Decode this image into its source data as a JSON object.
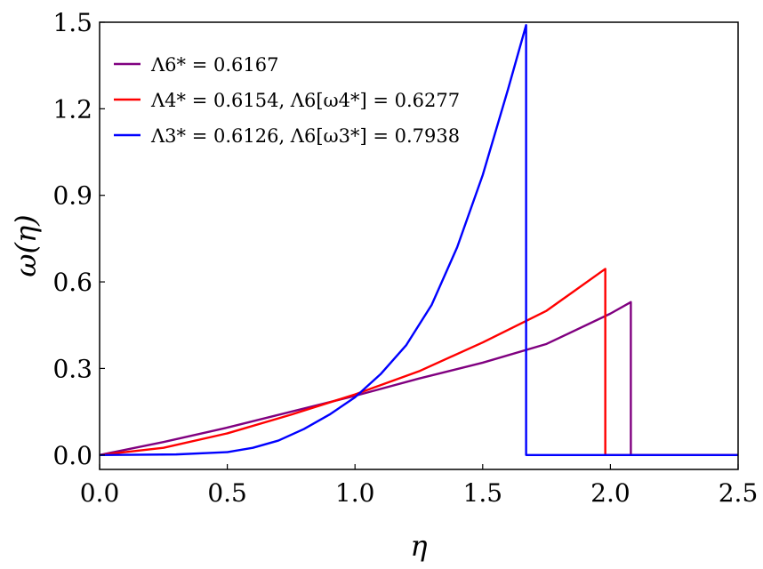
{
  "chart_data": {
    "type": "line",
    "title": "",
    "xlabel": "η",
    "ylabel": "ω(η)",
    "xlim": [
      0.0,
      2.5
    ],
    "ylim": [
      -0.05,
      1.5
    ],
    "xticks": [
      "0.0",
      "0.5",
      "1.0",
      "1.5",
      "2.0",
      "2.5"
    ],
    "yticks": [
      "0.0",
      "0.3",
      "0.6",
      "0.9",
      "1.2",
      "1.5"
    ],
    "grid": false,
    "legend_position": "top-left",
    "series": [
      {
        "name": "Λ6* = 0.6167",
        "color": "#800080",
        "x": [
          0.0,
          0.25,
          0.5,
          0.75,
          1.0,
          1.25,
          1.5,
          1.75,
          2.0,
          2.08,
          2.08,
          2.5
        ],
        "y": [
          0.0,
          0.045,
          0.095,
          0.15,
          0.205,
          0.265,
          0.32,
          0.385,
          0.49,
          0.53,
          0.0,
          0.0
        ]
      },
      {
        "name": "Λ4* = 0.6154, Λ6[ω4*] = 0.6277",
        "color": "#ff0000",
        "x": [
          0.0,
          0.25,
          0.5,
          0.75,
          1.0,
          1.25,
          1.5,
          1.75,
          1.98,
          1.98,
          2.5
        ],
        "y": [
          0.0,
          0.025,
          0.075,
          0.14,
          0.21,
          0.29,
          0.39,
          0.5,
          0.645,
          0.0,
          0.0
        ]
      },
      {
        "name": "Λ3* = 0.6126, Λ6[ω3*] = 0.7938",
        "color": "#0000ff",
        "x": [
          0.0,
          0.3,
          0.5,
          0.6,
          0.7,
          0.8,
          0.9,
          1.0,
          1.1,
          1.2,
          1.3,
          1.4,
          1.5,
          1.6,
          1.67,
          1.67,
          2.5
        ],
        "y": [
          0.0,
          0.002,
          0.01,
          0.025,
          0.05,
          0.09,
          0.14,
          0.2,
          0.28,
          0.38,
          0.52,
          0.72,
          0.97,
          1.27,
          1.49,
          0.0,
          0.0
        ]
      }
    ]
  }
}
